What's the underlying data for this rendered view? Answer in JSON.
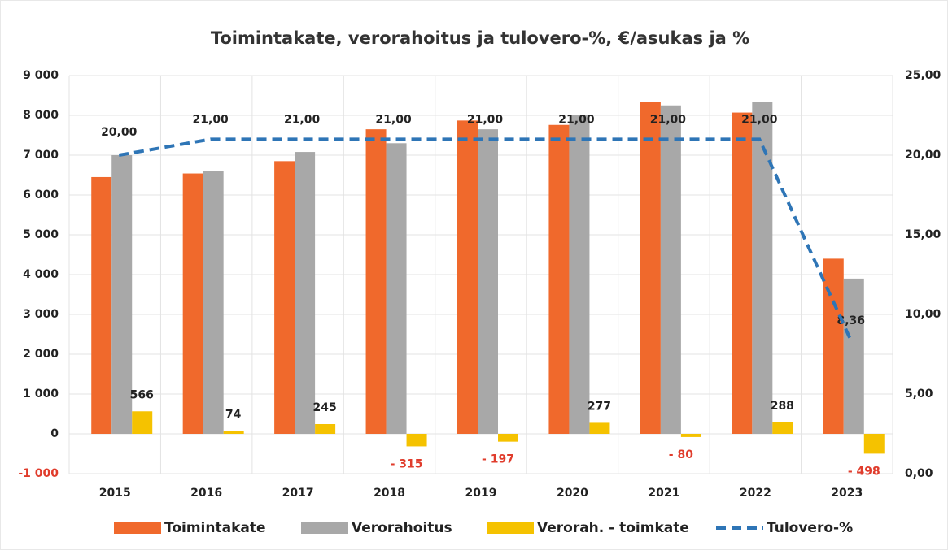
{
  "chart_data": {
    "type": "bar",
    "title": "Toimintakate, verorahoitus ja tulovero-%, €/asukas ja %",
    "categories": [
      "2015",
      "2016",
      "2017",
      "2018",
      "2019",
      "2020",
      "2021",
      "2022",
      "2023"
    ],
    "series": [
      {
        "name": "Toimintakate",
        "color": "#f0692c",
        "values": [
          6450,
          6540,
          6850,
          7650,
          7870,
          7760,
          8340,
          8070,
          4400
        ]
      },
      {
        "name": "Verorahoitus",
        "color": "#a8a8a8",
        "values": [
          7000,
          6600,
          7080,
          7300,
          7650,
          8000,
          8250,
          8330,
          3900
        ]
      },
      {
        "name": "Verorah. - toimkate",
        "color": "#f5c200",
        "values": [
          566,
          74,
          245,
          -315,
          -197,
          277,
          -80,
          288,
          -498
        ],
        "value_labels": [
          "566",
          "74",
          "245",
          "- 315",
          "- 197",
          "277",
          "- 80",
          "288",
          "- 498"
        ]
      },
      {
        "name": "Tulovero-%",
        "type": "line",
        "axis": "y2",
        "color": "#2e75b6",
        "values": [
          20,
          21,
          21,
          21,
          21,
          21,
          21,
          21,
          8.36
        ],
        "value_labels": [
          "20,00",
          "21,00",
          "21,00",
          "21,00",
          "21,00",
          "21,00",
          "21,00",
          "21,00",
          "8,36"
        ]
      }
    ],
    "ylim": [
      -1000,
      9000
    ],
    "yticks": [
      {
        "value": -1000,
        "label": "-1 000"
      },
      0,
      {
        "value": 1000,
        "label": "1 000"
      },
      {
        "value": 2000,
        "label": "2 000"
      },
      {
        "value": 3000,
        "label": "3 000"
      },
      {
        "value": 4000,
        "label": "4 000"
      },
      {
        "value": 5000,
        "label": "5 000"
      },
      {
        "value": 6000,
        "label": "6 000"
      },
      {
        "value": 7000,
        "label": "7 000"
      },
      {
        "value": 8000,
        "label": "8 000"
      },
      {
        "value": 9000,
        "label": "9 000"
      }
    ],
    "y2lim": [
      0,
      25
    ],
    "y2ticks": [
      {
        "value": 0,
        "label": "0,00"
      },
      {
        "value": 5,
        "label": "5,00"
      },
      {
        "value": 10,
        "label": "10,00"
      },
      {
        "value": 15,
        "label": "15,00"
      },
      {
        "value": 20,
        "label": "20,00"
      },
      {
        "value": 25,
        "label": "25,00"
      }
    ],
    "grid": true,
    "legend": "bottom"
  }
}
